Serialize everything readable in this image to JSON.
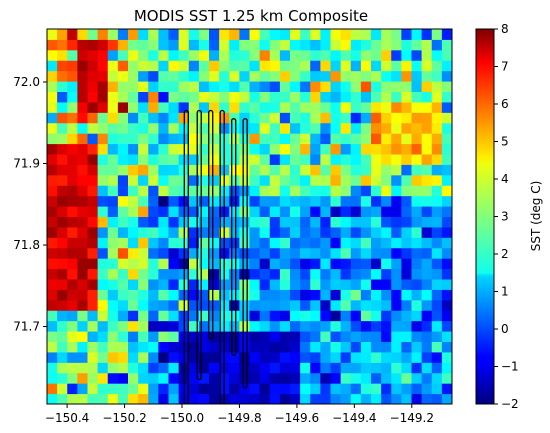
{
  "chart_data": {
    "type": "heatmap",
    "title": "MODIS SST 1.25 km Composite",
    "xlabel": "",
    "ylabel": "",
    "colorbar_label": "SST (deg C)",
    "colormap": "jet",
    "grid": false,
    "legend": "colorbar-right",
    "xlim": [
      -150.47,
      -149.06
    ],
    "ylim": [
      71.605,
      72.065
    ],
    "clim": [
      -2,
      8
    ],
    "x_ticks": [
      -150.4,
      -150.2,
      -150.0,
      -149.8,
      -149.6,
      -149.4,
      -149.2
    ],
    "x_tick_labels": [
      "−150.4",
      "−150.2",
      "−150.0",
      "−149.8",
      "−149.6",
      "−149.4",
      "−149.2"
    ],
    "y_ticks": [
      71.7,
      71.8,
      71.9,
      72.0
    ],
    "y_tick_labels": [
      "71.7",
      "71.8",
      "71.9",
      "72.0"
    ],
    "cbar_ticks": [
      -2,
      -1,
      0,
      1,
      2,
      3,
      4,
      5,
      6,
      7,
      8
    ],
    "cbar_tick_labels": [
      "−2",
      "−1",
      "0",
      "1",
      "2",
      "3",
      "4",
      "5",
      "6",
      "7",
      "8"
    ],
    "grid_cols": 40,
    "grid_rows": 36,
    "regions": [
      {
        "area": "west coast warm water",
        "lon": [
          -150.47,
          -150.28
        ],
        "lat": [
          71.72,
          71.93
        ],
        "sst_deg_c": 7.0
      },
      {
        "area": "northwest warm patch",
        "lon": [
          -150.35,
          -150.25
        ],
        "lat": [
          71.96,
          72.05
        ],
        "sst_deg_c": 7.2
      },
      {
        "area": "southeast cold water",
        "lon": [
          -150.0,
          -149.6
        ],
        "lat": [
          71.605,
          71.7
        ],
        "sst_deg_c": -1.0
      },
      {
        "area": "northeast warm patch",
        "lon": [
          -149.35,
          -149.1
        ],
        "lat": [
          71.9,
          71.98
        ],
        "sst_deg_c": 5.0
      }
    ],
    "flight_tracks": [
      {
        "lon": -149.985,
        "lat": [
          71.605,
          71.965
        ]
      },
      {
        "lon": -149.94,
        "lat": [
          71.635,
          71.965
        ]
      },
      {
        "lon": -149.9,
        "lat": [
          71.685,
          71.965
        ]
      },
      {
        "lon": -149.86,
        "lat": [
          71.605,
          71.965
        ]
      },
      {
        "lon": -149.82,
        "lat": [
          71.665,
          71.955
        ]
      },
      {
        "lon": -149.78,
        "lat": [
          71.625,
          71.955
        ]
      }
    ]
  }
}
